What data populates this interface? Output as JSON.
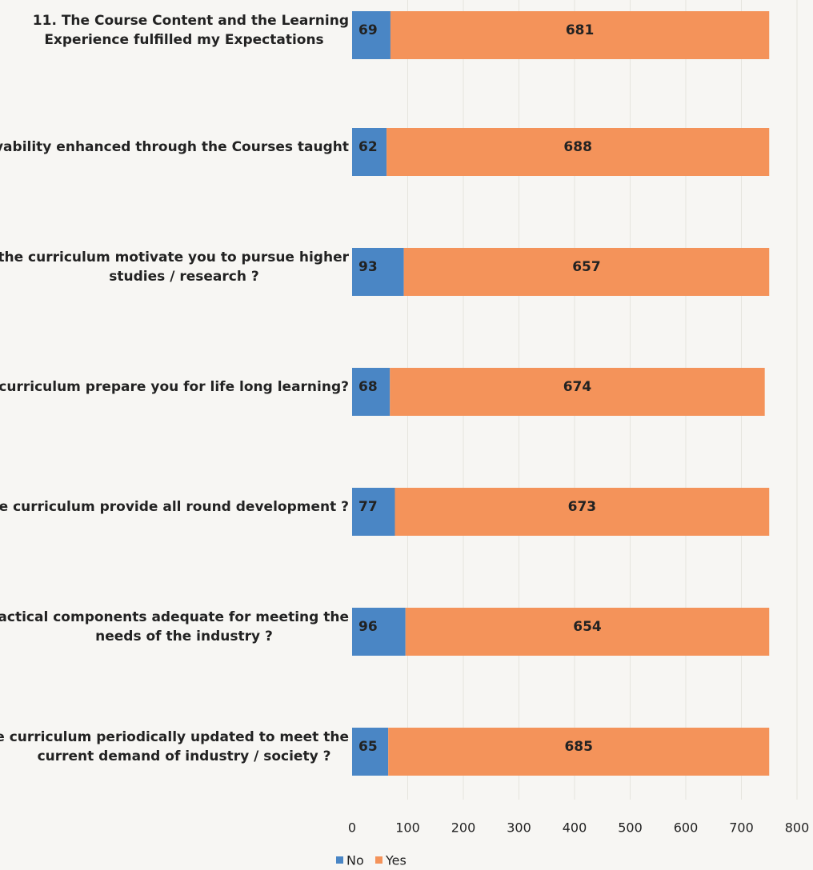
{
  "chart_data": {
    "type": "bar",
    "orientation": "horizontal",
    "stacked": true,
    "categories": [
      [
        "11. The Course Content and the Learning",
        "Experience fulfilled my Expectations"
      ],
      [
        "loyability enhanced through the Courses taught"
      ],
      [
        "s the curriculum motivate you to pursue higher",
        "studies /  research ?"
      ],
      [
        "e curriculum prepare you for life long learning?"
      ],
      [
        "he curriculum provide all round development ?"
      ],
      [
        "ractical components adequate for meeting the",
        "needs of the industry ?"
      ],
      [
        "e curriculum periodically updated to meet the",
        "current demand of industry /  society ?"
      ]
    ],
    "series": [
      {
        "name": "No",
        "color": "#4a86c5",
        "values": [
          69,
          62,
          93,
          68,
          77,
          96,
          65
        ]
      },
      {
        "name": "Yes",
        "color": "#f4935a",
        "values": [
          681,
          688,
          657,
          674,
          673,
          654,
          685
        ]
      }
    ],
    "xlim": [
      0,
      800
    ],
    "xticks": [
      0,
      100,
      200,
      300,
      400,
      500,
      600,
      700,
      800
    ],
    "grid": "vertical",
    "legend": "bottom",
    "data_labels": true
  }
}
